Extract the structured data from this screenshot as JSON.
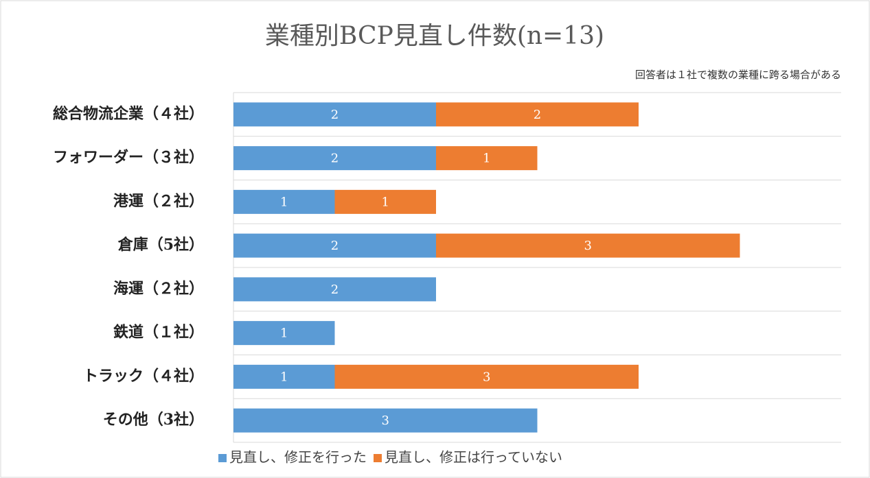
{
  "chart_data": {
    "type": "bar",
    "orientation": "horizontal",
    "stacked": true,
    "title": "業種別BCP見直し件数(n=13)",
    "annotation": "回答者は１社で複数の業種に跨る場合がある",
    "categories": [
      "総合物流企業（４社）",
      "フォワーダー（３社）",
      "港運（２社）",
      "倉庫（5社）",
      "海運（２社）",
      "鉄道（１社）",
      "トラック（４社）",
      "その他（3社）"
    ],
    "series": [
      {
        "name": "見直し、修正を行った",
        "color": "#5b9bd5",
        "values": [
          2,
          2,
          1,
          2,
          2,
          1,
          1,
          3
        ]
      },
      {
        "name": "見直し、修正は行っていない",
        "color": "#ed7d31",
        "values": [
          2,
          1,
          1,
          3,
          null,
          null,
          3,
          null
        ]
      }
    ],
    "xlim": [
      0,
      6
    ],
    "legend": "bottom"
  }
}
